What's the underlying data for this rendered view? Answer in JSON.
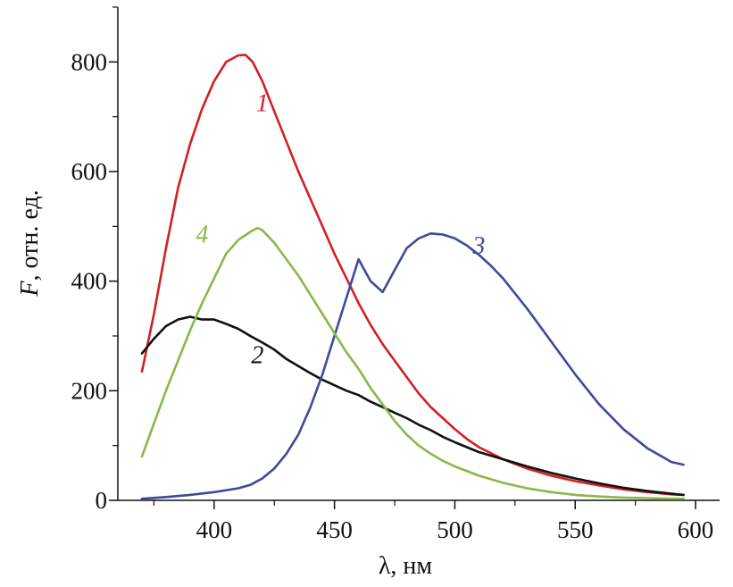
{
  "chart_data": {
    "type": "line",
    "title": "",
    "xlabel": "λ, нм",
    "ylabel_italic": "F",
    "ylabel_rest": ", отн. ед.",
    "xlim": [
      360,
      610
    ],
    "ylim": [
      0,
      900
    ],
    "xticks": [
      400,
      450,
      500,
      550,
      600
    ],
    "yticks": [
      0,
      200,
      400,
      600,
      800
    ],
    "xtick_labels": [
      "400",
      "450",
      "500",
      "550",
      "600"
    ],
    "ytick_labels": [
      "0",
      "200",
      "400",
      "600",
      "800"
    ],
    "grid": false,
    "legend": "none",
    "series": [
      {
        "name": "1",
        "color": "#d11f26",
        "x": [
          370,
          375,
          380,
          385,
          390,
          395,
          400,
          405,
          410,
          413,
          416,
          420,
          425,
          430,
          435,
          440,
          445,
          450,
          455,
          460,
          465,
          470,
          475,
          480,
          485,
          490,
          495,
          500,
          505,
          510,
          520,
          530,
          540,
          550,
          560,
          570,
          580,
          590,
          595
        ],
        "y": [
          235,
          340,
          460,
          570,
          650,
          715,
          765,
          800,
          812,
          813,
          800,
          765,
          710,
          655,
          600,
          550,
          500,
          450,
          405,
          360,
          320,
          285,
          255,
          225,
          195,
          170,
          150,
          130,
          112,
          97,
          75,
          58,
          45,
          35,
          27,
          20,
          15,
          11,
          10
        ]
      },
      {
        "name": "2",
        "color": "#111111",
        "x": [
          370,
          375,
          380,
          385,
          390,
          395,
          400,
          405,
          410,
          415,
          420,
          425,
          430,
          435,
          440,
          445,
          450,
          455,
          460,
          465,
          470,
          475,
          480,
          485,
          490,
          495,
          500,
          510,
          520,
          530,
          540,
          550,
          560,
          570,
          580,
          590,
          595
        ],
        "y": [
          268,
          295,
          318,
          330,
          335,
          330,
          330,
          322,
          313,
          300,
          288,
          275,
          258,
          245,
          232,
          220,
          210,
          200,
          192,
          180,
          170,
          160,
          150,
          138,
          128,
          116,
          106,
          88,
          75,
          62,
          50,
          40,
          31,
          23,
          17,
          12,
          10
        ]
      },
      {
        "name": "3",
        "color": "#3e4a9a",
        "x": [
          370,
          380,
          390,
          400,
          410,
          415,
          420,
          425,
          430,
          435,
          440,
          445,
          450,
          455,
          460,
          465,
          470,
          475,
          480,
          485,
          490,
          495,
          500,
          505,
          510,
          515,
          520,
          530,
          540,
          550,
          560,
          570,
          580,
          590,
          595
        ],
        "y": [
          3,
          6,
          10,
          15,
          22,
          28,
          40,
          58,
          85,
          120,
          170,
          230,
          300,
          370,
          440,
          400,
          380,
          420,
          460,
          478,
          487,
          485,
          478,
          465,
          448,
          428,
          405,
          350,
          290,
          230,
          175,
          130,
          95,
          70,
          65
        ]
      },
      {
        "name": "4",
        "color": "#8ab84a",
        "x": [
          370,
          375,
          380,
          385,
          390,
          395,
          400,
          405,
          410,
          415,
          418,
          420,
          425,
          430,
          435,
          440,
          445,
          450,
          455,
          460,
          465,
          470,
          475,
          480,
          485,
          490,
          495,
          500,
          510,
          520,
          530,
          540,
          550,
          560,
          570,
          580,
          590,
          595
        ],
        "y": [
          80,
          140,
          200,
          255,
          310,
          360,
          405,
          450,
          475,
          490,
          497,
          493,
          470,
          440,
          410,
          375,
          340,
          305,
          270,
          240,
          205,
          175,
          145,
          120,
          100,
          85,
          72,
          62,
          45,
          32,
          22,
          15,
          10,
          7,
          5,
          4,
          3,
          3
        ]
      }
    ],
    "curve_labels": [
      {
        "text": "1",
        "series": 0,
        "x": 420,
        "y": 710
      },
      {
        "text": "2",
        "series": 1,
        "x": 418,
        "y": 250
      },
      {
        "text": "3",
        "series": 2,
        "x": 510,
        "y": 450
      },
      {
        "text": "4",
        "series": 3,
        "x": 395,
        "y": 470
      }
    ]
  }
}
